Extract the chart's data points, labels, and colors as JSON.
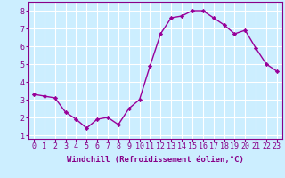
{
  "x": [
    0,
    1,
    2,
    3,
    4,
    5,
    6,
    7,
    8,
    9,
    10,
    11,
    12,
    13,
    14,
    15,
    16,
    17,
    18,
    19,
    20,
    21,
    22,
    23
  ],
  "y": [
    3.3,
    3.2,
    3.1,
    2.3,
    1.9,
    1.4,
    1.9,
    2.0,
    1.6,
    2.5,
    3.0,
    4.9,
    6.7,
    7.6,
    7.7,
    8.0,
    8.0,
    7.6,
    7.2,
    6.7,
    6.9,
    5.9,
    5.0,
    4.6
  ],
  "line_color": "#990099",
  "marker": "D",
  "marker_size": 2.2,
  "line_width": 1.0,
  "xlabel": "Windchill (Refroidissement éolien,°C)",
  "ylabel_ticks": [
    1,
    2,
    3,
    4,
    5,
    6,
    7,
    8
  ],
  "xlim": [
    -0.5,
    23.5
  ],
  "ylim": [
    0.8,
    8.5
  ],
  "background_color": "#cceeff",
  "grid_color": "#ffffff",
  "tick_label_color": "#880088",
  "xlabel_fontsize": 6.5,
  "tick_fontsize": 6.0
}
